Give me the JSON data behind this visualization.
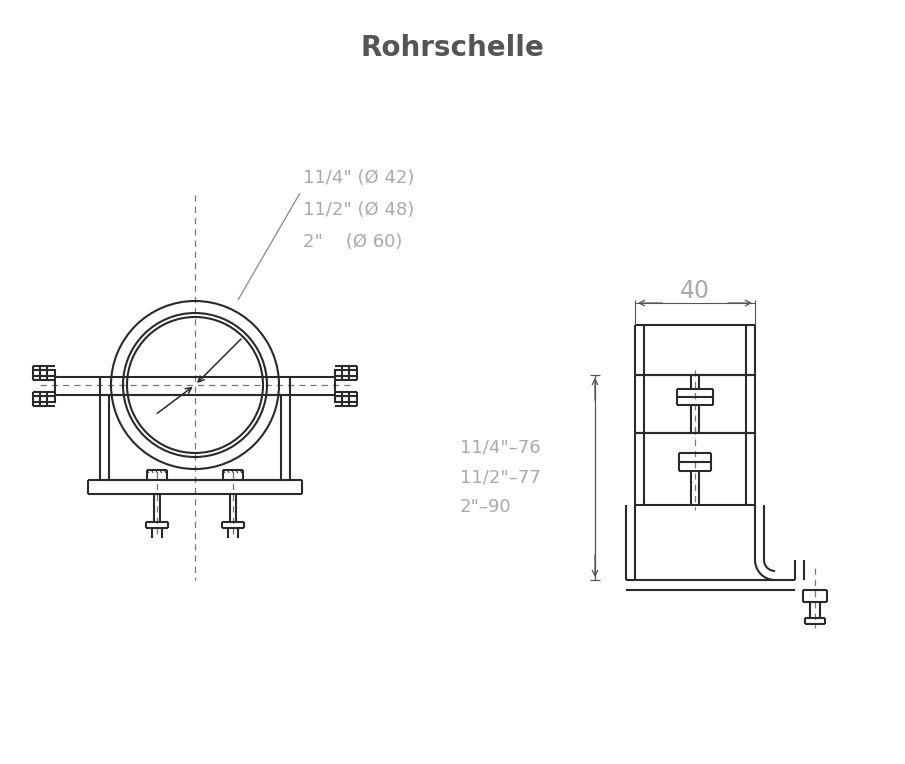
{
  "title": "Rohrschelle",
  "title_color": "#555555",
  "title_fontsize": 20,
  "dim_color": "#aaaaaa",
  "line_color": "#2a2a2a",
  "bg_color": "#ffffff",
  "dim_label_40": "40",
  "size_labels": [
    "11/4\" (Ø 42)",
    "11/2\" (Ø 48)",
    "2\"    (Ø 60)"
  ],
  "height_labels": [
    "11/4\"–76",
    "11/2\"–77",
    "2\"–90"
  ]
}
